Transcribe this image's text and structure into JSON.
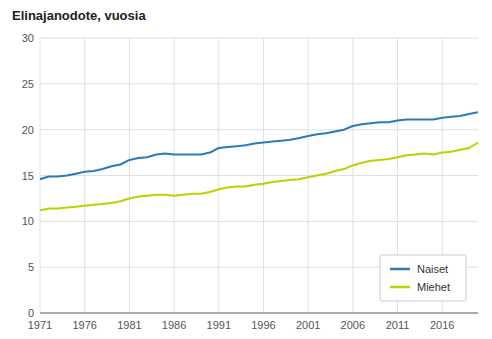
{
  "chart_data": {
    "type": "line",
    "title": "Elinajanodote, vuosia",
    "x": [
      1971,
      1972,
      1973,
      1974,
      1975,
      1976,
      1977,
      1978,
      1979,
      1980,
      1981,
      1982,
      1983,
      1984,
      1985,
      1986,
      1987,
      1988,
      1989,
      1990,
      1991,
      1992,
      1993,
      1994,
      1995,
      1996,
      1997,
      1998,
      1999,
      2000,
      2001,
      2002,
      2003,
      2004,
      2005,
      2006,
      2007,
      2008,
      2009,
      2010,
      2011,
      2012,
      2013,
      2014,
      2015,
      2016,
      2017,
      2018,
      2019,
      2020
    ],
    "series": [
      {
        "name": "Naiset",
        "color": "#2b7bba",
        "values": [
          14.6,
          14.9,
          14.9,
          15.0,
          15.2,
          15.4,
          15.5,
          15.7,
          16.0,
          16.2,
          16.7,
          16.9,
          17.0,
          17.3,
          17.4,
          17.3,
          17.3,
          17.3,
          17.3,
          17.5,
          18.0,
          18.1,
          18.2,
          18.3,
          18.5,
          18.6,
          18.7,
          18.8,
          18.9,
          19.1,
          19.3,
          19.5,
          19.6,
          19.8,
          20.0,
          20.4,
          20.6,
          20.7,
          20.8,
          20.8,
          21.0,
          21.1,
          21.1,
          21.1,
          21.1,
          21.3,
          21.4,
          21.5,
          21.7,
          21.9
        ]
      },
      {
        "name": "Miehet",
        "color": "#bfd000",
        "values": [
          11.2,
          11.4,
          11.4,
          11.5,
          11.6,
          11.7,
          11.8,
          11.9,
          12.0,
          12.2,
          12.5,
          12.7,
          12.8,
          12.9,
          12.9,
          12.8,
          12.9,
          13.0,
          13.0,
          13.2,
          13.5,
          13.7,
          13.8,
          13.8,
          14.0,
          14.1,
          14.3,
          14.4,
          14.5,
          14.6,
          14.8,
          15.0,
          15.2,
          15.5,
          15.7,
          16.1,
          16.4,
          16.6,
          16.7,
          16.8,
          17.0,
          17.2,
          17.3,
          17.4,
          17.3,
          17.5,
          17.6,
          17.8,
          18.0,
          18.6
        ]
      }
    ],
    "xlim": [
      1971,
      2020
    ],
    "xticks": [
      1971,
      1976,
      1981,
      1986,
      1991,
      1996,
      2001,
      2006,
      2011,
      2016
    ],
    "ylim": [
      0,
      30
    ],
    "yticks": [
      0,
      5,
      10,
      15,
      20,
      25,
      30
    ],
    "grid": true,
    "legend": "lower right"
  }
}
